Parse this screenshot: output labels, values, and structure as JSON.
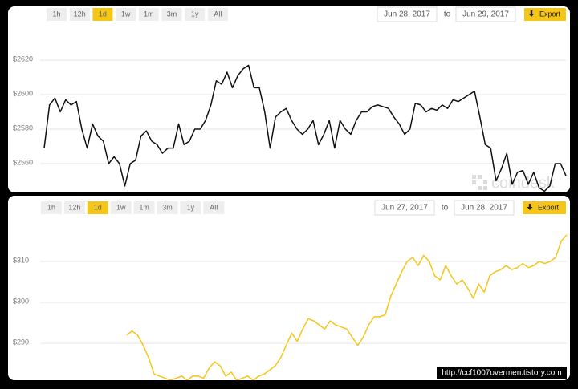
{
  "chart_data": [
    {
      "type": "line",
      "range_buttons": [
        "1h",
        "12h",
        "1d",
        "1w",
        "1m",
        "3m",
        "1y",
        "All"
      ],
      "active_range_index": 2,
      "date_from": "Jun 28, 2017",
      "date_separator": "to",
      "date_to": "Jun 29, 2017",
      "export_label": "Export",
      "watermark": "coindesk",
      "color": "#111111",
      "grid": true,
      "ylim": [
        2543,
        2641
      ],
      "yticks": [
        {
          "value": 2560,
          "label": "$2560"
        },
        {
          "value": 2580,
          "label": "$2580"
        },
        {
          "value": 2600,
          "label": "$2600"
        },
        {
          "value": 2620,
          "label": "$2620"
        }
      ],
      "values": [
        2569,
        2594,
        2598,
        2590,
        2597,
        2594,
        2596,
        2580,
        2569,
        2583,
        2576,
        2573,
        2560,
        2564,
        2560,
        2547,
        2560,
        2562,
        2576,
        2579,
        2573,
        2571,
        2566,
        2569,
        2569,
        2583,
        2571,
        2573,
        2580,
        2580,
        2585,
        2594,
        2608,
        2606,
        2613,
        2604,
        2611,
        2615,
        2617,
        2604,
        2604,
        2590,
        2569,
        2587,
        2590,
        2592,
        2585,
        2580,
        2577,
        2580,
        2585,
        2571,
        2577,
        2585,
        2569,
        2585,
        2580,
        2577,
        2585,
        2590,
        2590,
        2593,
        2594,
        2593,
        2592,
        2587,
        2583,
        2577,
        2580,
        2595,
        2594,
        2590,
        2592,
        2591,
        2594,
        2592,
        2597,
        2596,
        2598,
        2600,
        2602,
        2587,
        2571,
        2569,
        2550,
        2557,
        2566,
        2548,
        2555,
        2556,
        2548,
        2555,
        2546,
        2544,
        2547,
        2560,
        2560,
        2553
      ]
    },
    {
      "type": "line",
      "range_buttons": [
        "1h",
        "12h",
        "1d",
        "1w",
        "1m",
        "3m",
        "1y",
        "All"
      ],
      "active_range_index": 2,
      "date_from": "Jun 27, 2017",
      "date_separator": "to",
      "date_to": "Jun 28, 2017",
      "export_label": "Export",
      "color": "#f5c518",
      "grid": true,
      "ylim": [
        281,
        320
      ],
      "yticks": [
        {
          "value": 290,
          "label": "$290"
        },
        {
          "value": 300,
          "label": "$300"
        },
        {
          "value": 310,
          "label": "$310"
        }
      ],
      "values": [
        null,
        null,
        null,
        null,
        null,
        null,
        null,
        null,
        null,
        null,
        null,
        null,
        null,
        null,
        null,
        292,
        293,
        292,
        289.5,
        286.5,
        282.5,
        282,
        281.5,
        281,
        281.5,
        282,
        281,
        282,
        282,
        281.5,
        284,
        285.5,
        284.5,
        282,
        283,
        281,
        281.5,
        282,
        281,
        282,
        282.5,
        283.5,
        284.5,
        286.5,
        289.5,
        292.5,
        290.5,
        293.5,
        296,
        295.5,
        294.5,
        293.5,
        295.5,
        294.5,
        294,
        293.5,
        291.5,
        289.5,
        291.5,
        294.5,
        296.5,
        296.5,
        297,
        301.5,
        304.5,
        307.5,
        310,
        311,
        309,
        311.5,
        310,
        306.5,
        305.5,
        309,
        306.5,
        304.5,
        305.5,
        303.5,
        301,
        304.5,
        302.5,
        306.5,
        307.5,
        308,
        309,
        308,
        308.5,
        309.5,
        308.5,
        309,
        310,
        309.5,
        310,
        311,
        315,
        316.5
      ]
    }
  ],
  "footer": {
    "url": "http://ccf1007overmen.tistory.com"
  }
}
